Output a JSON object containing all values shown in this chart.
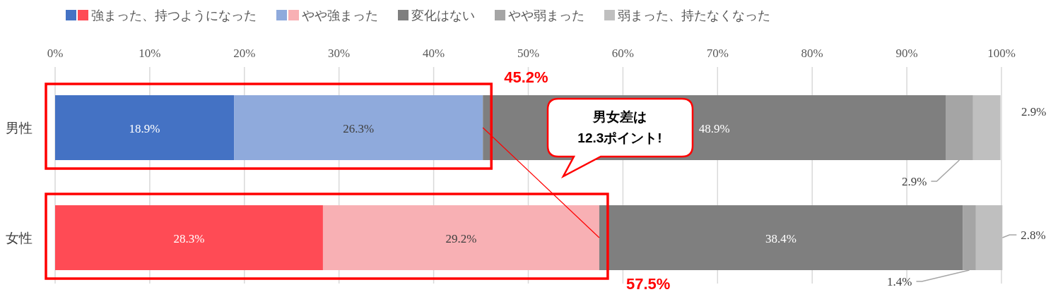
{
  "chart_data": {
    "type": "bar",
    "orientation": "horizontal",
    "stacked": true,
    "grid": "x",
    "legend": "top",
    "categories": [
      "男性",
      "女性"
    ],
    "xlim": [
      0,
      100
    ],
    "xticks": [
      {
        "value": 0,
        "label": "0%"
      },
      {
        "value": 10,
        "label": "10%"
      },
      {
        "value": 20,
        "label": "20%"
      },
      {
        "value": 30,
        "label": "30%"
      },
      {
        "value": 40,
        "label": "40%"
      },
      {
        "value": 50,
        "label": "50%"
      },
      {
        "value": 60,
        "label": "60%"
      },
      {
        "value": 70,
        "label": "70%"
      },
      {
        "value": 80,
        "label": "80%"
      },
      {
        "value": 90,
        "label": "90%"
      },
      {
        "value": 100,
        "label": "100%"
      }
    ],
    "series": [
      {
        "name": "強まった、持つようになった",
        "colors": [
          "#4472c4",
          "#ff4b55"
        ],
        "values": [
          18.9,
          28.3
        ],
        "value_labels": [
          "18.9%",
          "28.3%"
        ]
      },
      {
        "name": "やや強まった",
        "colors": [
          "#8faadc",
          "#f8b0b4"
        ],
        "values": [
          26.3,
          29.2
        ],
        "value_labels": [
          "26.3%",
          "29.2%"
        ]
      },
      {
        "name": "変化はない",
        "color": "#7f7f7f",
        "values": [
          48.9,
          38.4
        ],
        "value_labels": [
          "48.9%",
          "38.4%"
        ]
      },
      {
        "name": "やや弱まった",
        "color": "#a5a5a5",
        "values": [
          2.9,
          1.4
        ],
        "value_labels": [
          "2.9%",
          "1.4%"
        ]
      },
      {
        "name": "弱まった、持たなくなった",
        "color": "#bfbfbf",
        "values": [
          2.9,
          2.8
        ],
        "value_labels": [
          "2.9%",
          "2.8%"
        ]
      }
    ],
    "annotations": [
      "45.2%",
      "57.5%",
      "男女差は\n12.3ポイント!"
    ]
  }
}
